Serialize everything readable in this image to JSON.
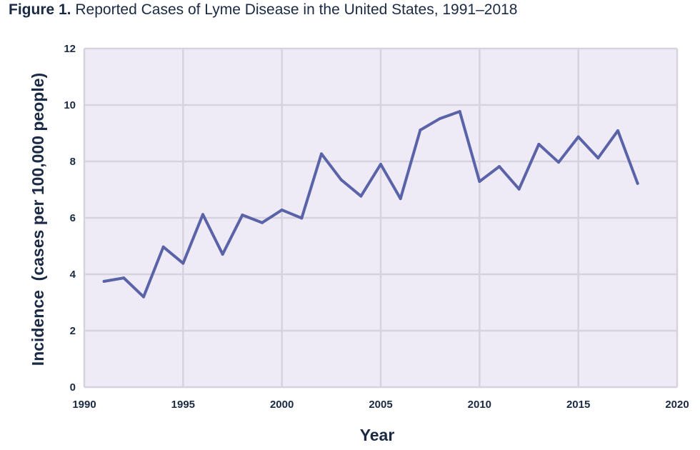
{
  "figure": {
    "label": "Figure 1.",
    "title": "Reported Cases of Lyme Disease in the United States, 1991–2018"
  },
  "chart_data": {
    "type": "line",
    "xlabel": "Year",
    "ylabel": "Incidence  (cases per 100,000 people)",
    "xlim": [
      1990,
      2020
    ],
    "ylim": [
      0,
      12
    ],
    "xticks": [
      1990,
      1995,
      2000,
      2005,
      2010,
      2015,
      2020
    ],
    "yticks": [
      0,
      2,
      4,
      6,
      8,
      10,
      12
    ],
    "grid": true,
    "legend": "none",
    "colors": {
      "plot_background": "#eeebf6",
      "grid": "#d6d3de",
      "line": "#5b63a8",
      "text": "#1b2a44"
    },
    "series": [
      {
        "x": [
          1991,
          1992,
          1993,
          1994,
          1995,
          1996,
          1997,
          1998,
          1999,
          2000,
          2001,
          2002,
          2003,
          2004,
          2005,
          2006,
          2007,
          2008,
          2009,
          2010,
          2011,
          2012,
          2013,
          2014,
          2015,
          2016,
          2017,
          2018
        ],
        "values": [
          3.75,
          3.87,
          3.2,
          4.97,
          4.39,
          6.12,
          4.71,
          6.1,
          5.83,
          6.28,
          5.99,
          8.27,
          7.35,
          6.77,
          7.9,
          6.68,
          9.11,
          9.52,
          9.77,
          7.29,
          7.82,
          7.02,
          8.61,
          7.97,
          8.87,
          8.12,
          9.09,
          7.22
        ]
      }
    ]
  }
}
